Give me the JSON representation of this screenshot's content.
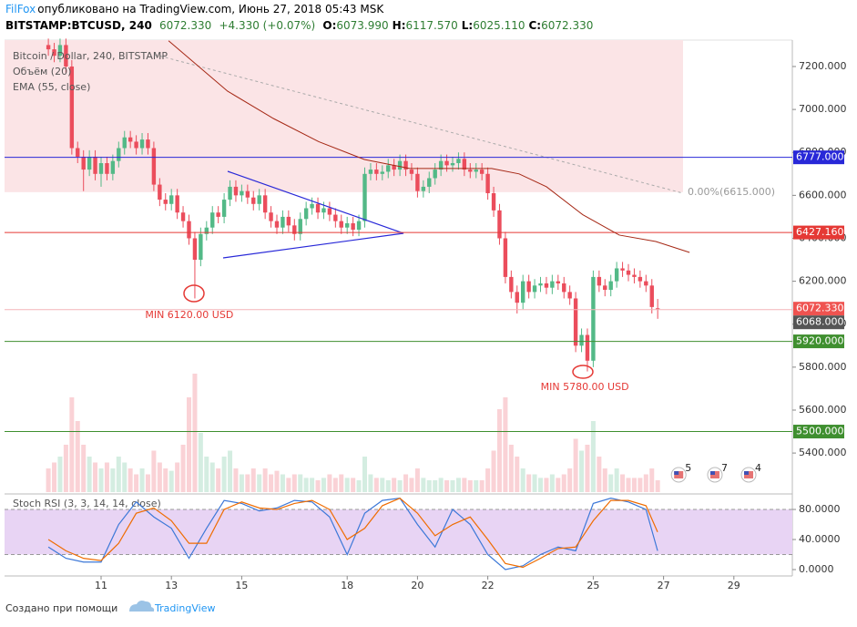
{
  "chart_data": {
    "type": "candlestick",
    "header": {
      "author": "FilFox",
      "published": "опубликовано на TradingView.com, Июнь 27, 2018 05:43 MSK",
      "symbol": "BITSTAMP:BTCUSD, 240",
      "last": "6072.330",
      "change": "+4.330 (+0.07%)",
      "ohlc": [
        {
          "label": "O:",
          "value": "6073.990"
        },
        {
          "label": "H:",
          "value": "6117.570"
        },
        {
          "label": "L:",
          "value": "6025.110"
        },
        {
          "label": "C:",
          "value": "6072.330"
        }
      ]
    },
    "title": "Bitcoin / Dollar, 240, BITSTAMP",
    "up_color": "#53b987",
    "down_color": "#eb4d5c",
    "xlim": [
      8.254,
      30.663
    ],
    "ylim": [
      5218,
      7323
    ],
    "xticks": [
      11,
      13,
      15,
      18,
      20,
      22,
      25,
      27,
      29
    ],
    "yticks": [
      {
        "value": 7200,
        "label": "7200.000"
      },
      {
        "value": 7000,
        "label": "7000.000"
      },
      {
        "value": 6800,
        "label": "6800.000"
      },
      {
        "value": 6600,
        "label": "6600.000"
      },
      {
        "value": 6400,
        "label": "6400.000"
      },
      {
        "value": 6200,
        "label": "6200.000"
      },
      {
        "value": 6000,
        "label": "6000.000"
      },
      {
        "value": 5800,
        "label": "5800.000"
      },
      {
        "value": 5600,
        "label": "5600.000"
      },
      {
        "value": 5400,
        "label": "5400.000"
      }
    ],
    "x": [
      9.5,
      9.667,
      9.833,
      10.0,
      10.167,
      10.333,
      10.5,
      10.667,
      10.833,
      11.0,
      11.167,
      11.333,
      11.5,
      11.667,
      11.833,
      12.0,
      12.167,
      12.333,
      12.5,
      12.667,
      12.833,
      13.0,
      13.167,
      13.333,
      13.5,
      13.667,
      13.833,
      14.0,
      14.167,
      14.333,
      14.5,
      14.667,
      14.833,
      15.0,
      15.167,
      15.333,
      15.5,
      15.667,
      15.833,
      16.0,
      16.167,
      16.333,
      16.5,
      16.667,
      16.833,
      17.0,
      17.167,
      17.333,
      17.5,
      17.667,
      17.833,
      18.0,
      18.167,
      18.333,
      18.5,
      18.667,
      18.833,
      19.0,
      19.167,
      19.333,
      19.5,
      19.667,
      19.833,
      20.0,
      20.167,
      20.333,
      20.5,
      20.667,
      20.833,
      21.0,
      21.167,
      21.333,
      21.5,
      21.667,
      21.833,
      22.0,
      22.167,
      22.333,
      22.5,
      22.667,
      22.833,
      23.0,
      23.167,
      23.333,
      23.5,
      23.667,
      23.833,
      24.0,
      24.167,
      24.333,
      24.5,
      24.667,
      24.833,
      25.0,
      25.167,
      25.333,
      25.5,
      25.667,
      25.833,
      26.0,
      26.167,
      26.333,
      26.5,
      26.667,
      26.833
    ],
    "open": [
      7300,
      7280,
      7250,
      7300,
      7200,
      6820,
      6780,
      6720,
      6780,
      6700,
      6750,
      6700,
      6760,
      6820,
      6870,
      6850,
      6820,
      6860,
      6820,
      6650,
      6580,
      6560,
      6600,
      6520,
      6480,
      6400,
      6300,
      6420,
      6450,
      6520,
      6500,
      6580,
      6640,
      6600,
      6620,
      6590,
      6560,
      6600,
      6520,
      6480,
      6450,
      6500,
      6460,
      6420,
      6490,
      6540,
      6560,
      6520,
      6540,
      6510,
      6480,
      6450,
      6470,
      6440,
      6480,
      6700,
      6720,
      6700,
      6710,
      6740,
      6720,
      6760,
      6720,
      6700,
      6620,
      6640,
      6680,
      6720,
      6760,
      6740,
      6750,
      6770,
      6720,
      6710,
      6720,
      6700,
      6610,
      6530,
      6400,
      6220,
      6150,
      6100,
      6200,
      6150,
      6180,
      6190,
      6170,
      6200,
      6190,
      6150,
      6120,
      5900,
      5950,
      5830,
      6220,
      6180,
      6160,
      6200,
      6260,
      6250,
      6230,
      6220,
      6200,
      6180,
      6073.99
    ],
    "high": [
      7330,
      7310,
      7330,
      7330,
      7230,
      6850,
      6810,
      6810,
      6810,
      6780,
      6780,
      6790,
      6850,
      6900,
      6900,
      6880,
      6890,
      6890,
      6850,
      6680,
      6610,
      6630,
      6630,
      6550,
      6510,
      6430,
      6450,
      6480,
      6550,
      6550,
      6610,
      6670,
      6670,
      6650,
      6650,
      6620,
      6630,
      6630,
      6550,
      6510,
      6530,
      6530,
      6490,
      6520,
      6570,
      6590,
      6590,
      6570,
      6570,
      6540,
      6510,
      6500,
      6500,
      6510,
      6730,
      6750,
      6750,
      6740,
      6770,
      6770,
      6790,
      6790,
      6750,
      6730,
      6670,
      6710,
      6750,
      6790,
      6790,
      6780,
      6800,
      6800,
      6750,
      6750,
      6750,
      6730,
      6640,
      6560,
      6430,
      6250,
      6180,
      6230,
      6230,
      6210,
      6220,
      6220,
      6230,
      6230,
      6220,
      6180,
      6150,
      5980,
      5980,
      6250,
      6250,
      6210,
      6230,
      6290,
      6290,
      6280,
      6260,
      6250,
      6230,
      6210,
      6117.57
    ],
    "low": [
      7250,
      7220,
      7220,
      7170,
      6790,
      6750,
      6620,
      6690,
      6670,
      6640,
      6670,
      6670,
      6730,
      6790,
      6820,
      6790,
      6790,
      6790,
      6620,
      6550,
      6530,
      6530,
      6490,
      6450,
      6370,
      6120,
      6270,
      6390,
      6420,
      6470,
      6470,
      6550,
      6570,
      6570,
      6560,
      6530,
      6530,
      6490,
      6450,
      6420,
      6420,
      6430,
      6390,
      6390,
      6460,
      6510,
      6490,
      6490,
      6480,
      6450,
      6420,
      6420,
      6410,
      6410,
      6450,
      6670,
      6670,
      6670,
      6680,
      6690,
      6690,
      6690,
      6670,
      6590,
      6590,
      6610,
      6650,
      6690,
      6710,
      6710,
      6720,
      6690,
      6680,
      6680,
      6670,
      6580,
      6500,
      6370,
      6190,
      6120,
      6050,
      6070,
      6120,
      6120,
      6150,
      6140,
      6140,
      6160,
      6120,
      6090,
      5870,
      5870,
      5780,
      5800,
      6150,
      6130,
      6130,
      6170,
      6220,
      6200,
      6190,
      6170,
      6150,
      6050,
      6025.11
    ],
    "close": [
      7280,
      7250,
      7300,
      7200,
      6820,
      6780,
      6720,
      6780,
      6700,
      6750,
      6700,
      6760,
      6820,
      6870,
      6850,
      6820,
      6860,
      6820,
      6650,
      6580,
      6560,
      6600,
      6520,
      6480,
      6400,
      6300,
      6420,
      6450,
      6520,
      6500,
      6580,
      6640,
      6600,
      6620,
      6590,
      6560,
      6600,
      6520,
      6480,
      6450,
      6500,
      6460,
      6420,
      6490,
      6540,
      6560,
      6520,
      6540,
      6510,
      6480,
      6450,
      6470,
      6440,
      6480,
      6700,
      6720,
      6700,
      6710,
      6740,
      6720,
      6760,
      6720,
      6700,
      6620,
      6640,
      6680,
      6720,
      6760,
      6740,
      6750,
      6770,
      6720,
      6710,
      6720,
      6700,
      6610,
      6530,
      6400,
      6220,
      6150,
      6100,
      6200,
      6150,
      6180,
      6190,
      6170,
      6200,
      6190,
      6150,
      6120,
      5900,
      5950,
      5830,
      6220,
      6180,
      6160,
      6200,
      6260,
      6250,
      6230,
      6220,
      6200,
      6180,
      6080,
      6072.33
    ],
    "volume": {
      "name": "Объём (20)",
      "vlim": [
        0,
        100
      ],
      "values": [
        20,
        25,
        30,
        40,
        80,
        60,
        40,
        30,
        25,
        20,
        25,
        20,
        30,
        25,
        20,
        15,
        20,
        15,
        35,
        25,
        20,
        18,
        25,
        40,
        80,
        100,
        50,
        30,
        25,
        20,
        30,
        35,
        20,
        15,
        15,
        20,
        15,
        20,
        15,
        18,
        15,
        12,
        15,
        15,
        12,
        12,
        10,
        12,
        15,
        12,
        15,
        12,
        12,
        10,
        30,
        15,
        12,
        12,
        10,
        12,
        10,
        15,
        12,
        20,
        12,
        10,
        10,
        12,
        10,
        10,
        12,
        12,
        10,
        10,
        10,
        20,
        35,
        70,
        80,
        40,
        30,
        20,
        15,
        15,
        12,
        12,
        15,
        12,
        15,
        20,
        45,
        35,
        40,
        60,
        30,
        20,
        15,
        20,
        15,
        12,
        12,
        12,
        15,
        20,
        10
      ]
    },
    "ema": {
      "name": "EMA (55, close)",
      "color": "#a52714",
      "x": [
        12.92,
        14.6,
        15.9,
        17.19,
        18.49,
        19.78,
        21.08,
        22.11,
        22.89,
        23.67,
        24.7,
        25.74,
        26.78,
        27.74
      ],
      "values": [
        7320,
        7085,
        6958,
        6850,
        6767,
        6725,
        6725,
        6725,
        6700,
        6640,
        6510,
        6415,
        6385,
        6334
      ]
    },
    "fib": {
      "value": 6615,
      "label": "0.00%(6615.000)"
    },
    "levels": [
      {
        "value": 6777,
        "label": "6777.000",
        "color": "#2828d8",
        "line": true
      },
      {
        "value": 6427.16,
        "label": "6427.160",
        "color": "#e53935",
        "line": true
      },
      {
        "value": 6072.33,
        "label": "6072.330",
        "color": "#ef5350",
        "line": false
      },
      {
        "value": 6068,
        "label": "6068.000",
        "color": "#555555",
        "line": true
      },
      {
        "value": 5920,
        "label": "5920.000",
        "color": "#3f8f2f",
        "line": true
      },
      {
        "value": 5500,
        "label": "5500.000",
        "color": "#3f8f2f",
        "line": true
      }
    ],
    "annotations": [
      {
        "x": 13.6,
        "text": "MIN 6120.00 USD"
      },
      {
        "x": 24.85,
        "text": "MIN 5780.00 USD"
      }
    ],
    "events": [
      {
        "x": 27.43,
        "count": 5
      },
      {
        "x": 28.46,
        "count": 7
      },
      {
        "x": 29.42,
        "count": 4
      }
    ],
    "stoch": {
      "title": "Stoch RSI (3, 3, 14, 14, close)",
      "ylim": [
        -8.5,
        97
      ],
      "yticks": [
        {
          "value": 80,
          "label": "80.0000"
        },
        {
          "value": 40,
          "label": "40.0000"
        },
        {
          "value": 0,
          "label": "0.0000"
        }
      ],
      "band": [
        20,
        80
      ],
      "x": [
        9.5,
        10,
        10.5,
        11,
        11.5,
        12,
        12.5,
        13,
        13.5,
        14,
        14.5,
        15,
        15.5,
        16,
        16.5,
        17,
        17.5,
        18,
        18.5,
        19,
        19.5,
        20,
        20.5,
        21,
        21.5,
        22,
        22.5,
        23,
        23.5,
        24,
        24.5,
        25,
        25.5,
        26,
        26.5,
        26.83
      ],
      "series": [
        {
          "color": "#3c78d8",
          "values": [
            30,
            15,
            10,
            10,
            60,
            90,
            70,
            55,
            15,
            55,
            92,
            88,
            78,
            82,
            92,
            90,
            70,
            20,
            75,
            92,
            95,
            60,
            30,
            80,
            60,
            20,
            0,
            5,
            20,
            30,
            25,
            88,
            95,
            90,
            80,
            25
          ]
        },
        {
          "color": "#ef6c00",
          "values": [
            40,
            25,
            15,
            12,
            35,
            75,
            82,
            65,
            35,
            35,
            80,
            90,
            82,
            80,
            88,
            92,
            80,
            40,
            55,
            85,
            95,
            75,
            45,
            60,
            70,
            40,
            8,
            3,
            15,
            28,
            30,
            65,
            92,
            92,
            85,
            50
          ]
        }
      ]
    },
    "footer": {
      "made_with": "Создано при помощи",
      "brand": "TradingView"
    }
  }
}
